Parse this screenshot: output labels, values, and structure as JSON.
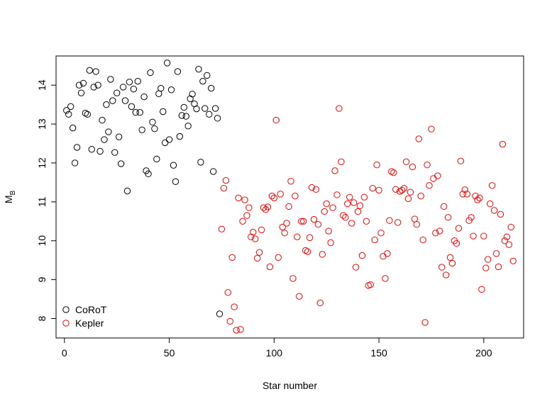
{
  "chart_data": {
    "type": "scatter",
    "title": "",
    "xlabel": "Star number",
    "ylabel": {
      "main": "M",
      "sub": "B"
    },
    "xlim": [
      -4,
      219
    ],
    "ylim": [
      7.5,
      14.75
    ],
    "xticks": [
      0,
      50,
      100,
      150,
      200
    ],
    "yticks": [
      8,
      9,
      10,
      11,
      12,
      13,
      14
    ],
    "grid": false,
    "legend_position": "bottom-left",
    "series": [
      {
        "name": "CoRoT",
        "color": "#000000",
        "marker": "open-circle",
        "x": [
          1,
          2,
          3,
          4,
          5,
          6,
          7,
          8,
          9,
          10,
          11,
          12,
          13,
          14,
          15,
          16,
          17,
          18,
          19,
          20,
          21,
          22,
          23,
          24,
          25,
          26,
          27,
          28,
          29,
          30,
          31,
          32,
          33,
          34,
          35,
          36,
          37,
          38,
          39,
          40,
          41,
          42,
          43,
          44,
          45,
          46,
          47,
          48,
          49,
          50,
          51,
          52,
          53,
          54,
          55,
          56,
          57,
          58,
          59,
          60,
          61,
          62,
          63,
          64,
          65,
          66,
          67,
          68,
          69,
          70,
          71,
          72,
          73,
          74
        ],
        "y": [
          13.35,
          13.25,
          13.45,
          12.9,
          12.0,
          12.4,
          14.0,
          13.8,
          14.05,
          13.28,
          13.25,
          14.38,
          12.35,
          13.95,
          14.35,
          14.0,
          12.3,
          13.1,
          12.6,
          13.5,
          12.8,
          14.15,
          13.6,
          12.27,
          13.8,
          12.67,
          11.98,
          13.95,
          13.6,
          11.28,
          14.08,
          13.45,
          13.9,
          13.3,
          14.1,
          13.3,
          12.85,
          13.7,
          11.8,
          11.72,
          14.32,
          13.05,
          12.88,
          12.1,
          13.78,
          13.92,
          13.32,
          12.52,
          14.57,
          12.6,
          13.88,
          11.94,
          11.52,
          14.35,
          12.68,
          13.22,
          13.43,
          13.2,
          12.95,
          13.65,
          13.77,
          13.52,
          13.39,
          14.41,
          12.02,
          14.1,
          13.4,
          14.25,
          13.25,
          13.92,
          11.78,
          13.4,
          13.15,
          8.12
        ]
      },
      {
        "name": "Kepler",
        "color": "#ff0000",
        "marker": "open-circle",
        "x": [
          75,
          76,
          77,
          78,
          79,
          80,
          81,
          82,
          83,
          84,
          85,
          86,
          87,
          88,
          89,
          90,
          91,
          92,
          93,
          94,
          95,
          96,
          97,
          98,
          99,
          100,
          101,
          102,
          103,
          104,
          105,
          106,
          107,
          108,
          109,
          110,
          111,
          112,
          113,
          114,
          115,
          116,
          117,
          118,
          119,
          120,
          121,
          122,
          123,
          124,
          125,
          126,
          127,
          128,
          129,
          130,
          131,
          132,
          133,
          134,
          135,
          136,
          137,
          138,
          139,
          140,
          141,
          142,
          143,
          144,
          145,
          146,
          147,
          148,
          149,
          150,
          151,
          152,
          153,
          154,
          155,
          156,
          157,
          158,
          159,
          160,
          161,
          162,
          163,
          164,
          165,
          166,
          167,
          168,
          169,
          170,
          171,
          172,
          173,
          174,
          175,
          176,
          177,
          178,
          179,
          180,
          181,
          182,
          183,
          184,
          185,
          186,
          187,
          188,
          189,
          190,
          191,
          192,
          193,
          194,
          195,
          196,
          197,
          198,
          199,
          200,
          201,
          202,
          203,
          204,
          205,
          206,
          207,
          208,
          209,
          210,
          211,
          212,
          213,
          214
        ],
        "y": [
          10.3,
          11.35,
          11.55,
          8.67,
          7.93,
          9.57,
          8.3,
          7.7,
          11.1,
          7.72,
          10.5,
          11.05,
          10.65,
          10.85,
          10.1,
          10.22,
          10.05,
          9.55,
          9.7,
          10.28,
          10.85,
          10.8,
          10.87,
          9.33,
          11.15,
          11.1,
          13.1,
          9.57,
          11.2,
          10.35,
          10.2,
          10.45,
          10.88,
          11.53,
          9.03,
          11.15,
          10.1,
          8.57,
          10.5,
          10.5,
          9.75,
          9.72,
          10.08,
          11.37,
          10.55,
          11.32,
          10.42,
          8.4,
          9.65,
          10.75,
          10.95,
          10.25,
          9.95,
          10.85,
          11.8,
          11.18,
          13.4,
          12.03,
          10.65,
          10.6,
          10.95,
          11.12,
          10.45,
          10.98,
          9.32,
          10.75,
          10.9,
          9.62,
          11.12,
          10.5,
          8.85,
          8.87,
          11.35,
          10.02,
          11.95,
          11.3,
          10.2,
          9.6,
          9.03,
          9.67,
          10.52,
          11.78,
          11.75,
          11.32,
          10.47,
          11.27,
          11.3,
          11.35,
          12.03,
          11.08,
          11.25,
          11.9,
          10.56,
          10.42,
          12.62,
          11.15,
          10.02,
          7.9,
          11.95,
          11.42,
          12.87,
          11.6,
          10.2,
          11.67,
          10.25,
          9.32,
          10.88,
          9.12,
          10.6,
          9.57,
          9.42,
          10.0,
          9.93,
          10.32,
          12.05,
          11.2,
          11.31,
          11.2,
          10.52,
          10.6,
          10.12,
          11.15,
          11.05,
          11.1,
          8.75,
          10.12,
          9.3,
          9.52,
          10.95,
          11.42,
          10.78,
          9.67,
          9.33,
          10.68,
          12.48,
          10.0,
          10.1,
          9.9,
          10.35,
          9.48
        ]
      }
    ]
  }
}
